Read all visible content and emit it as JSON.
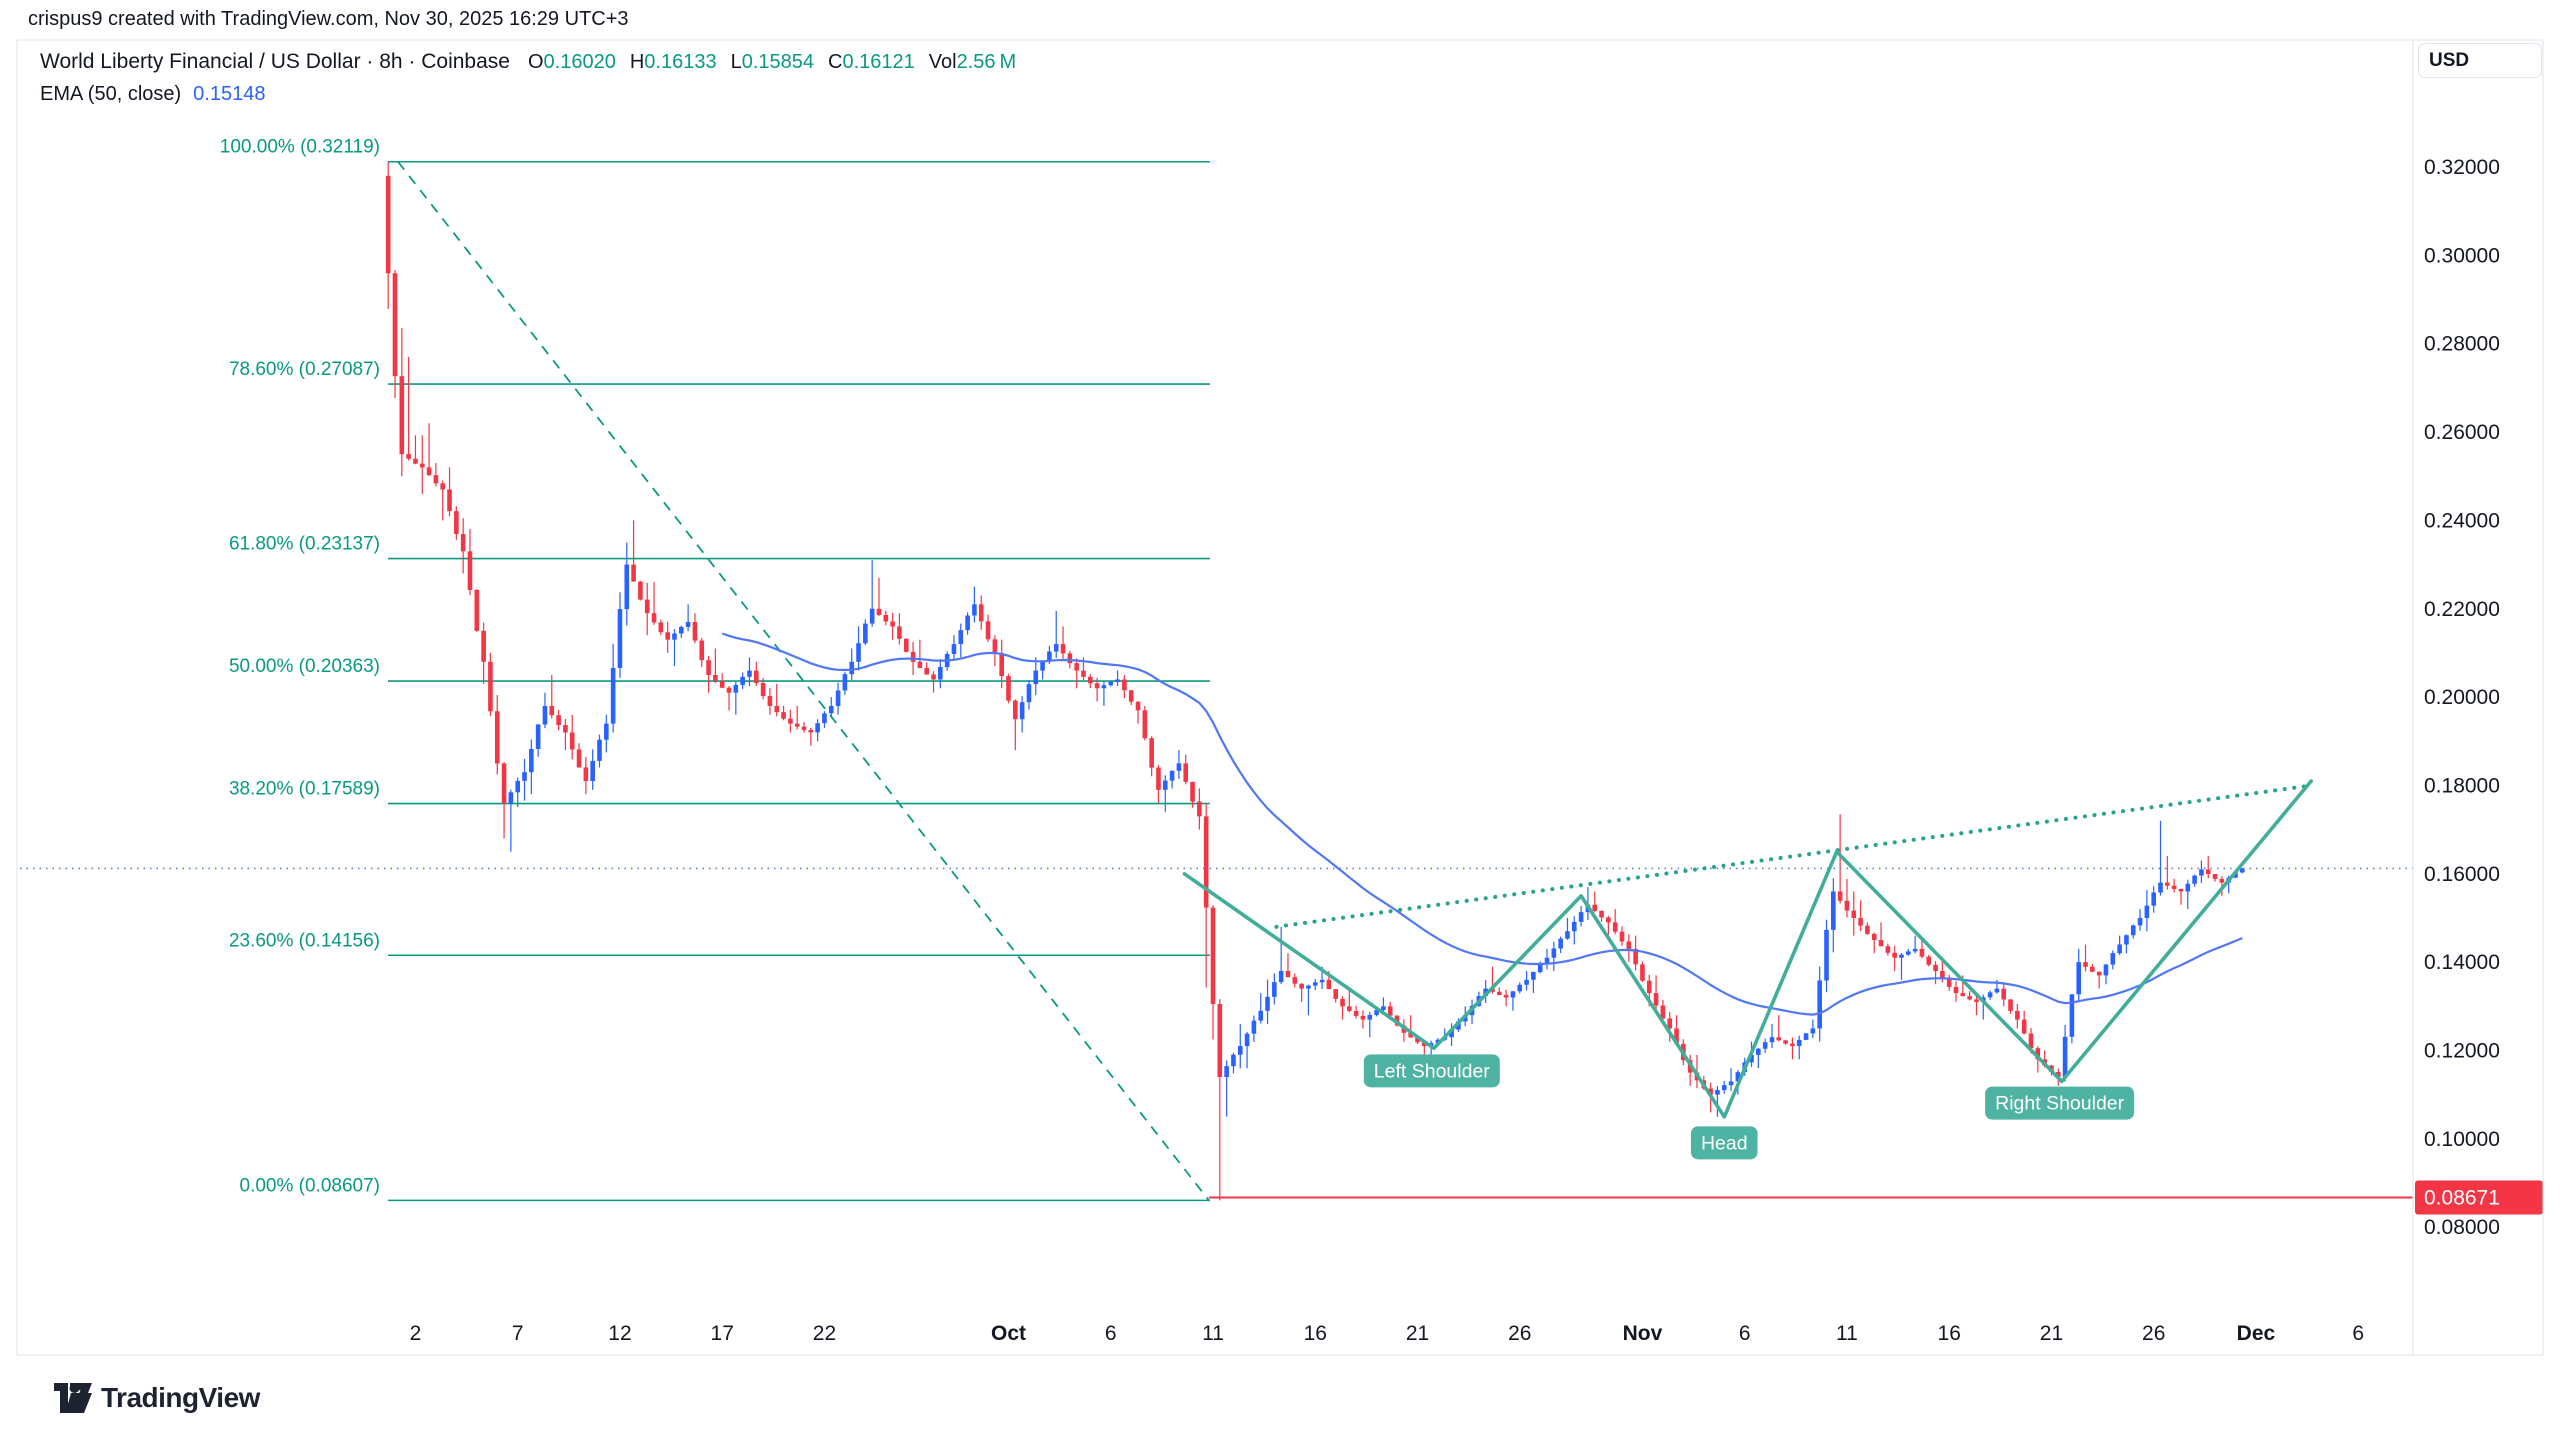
{
  "header": {
    "attribution": "crispus9 created with TradingView.com, Nov 30, 2025 16:29 UTC+3"
  },
  "legend": {
    "symbol_title": "World Liberty Financial / US Dollar · 8h · Coinbase",
    "open_label": "O",
    "open_value": "0.16020",
    "high_label": "H",
    "high_value": "0.16133",
    "low_label": "L",
    "low_value": "0.15854",
    "close_label": "C",
    "close_value": "0.16121",
    "vol_label": "Vol",
    "vol_value": "2.56 M",
    "ema_name": "EMA (50, close)",
    "ema_value": "0.15148"
  },
  "toolbar": {
    "currency": "USD"
  },
  "footer": {
    "brand": "TradingView"
  },
  "colors": {
    "up": "#2962ff",
    "down": "#f23645",
    "fib": "#089981",
    "ema": "#4f77f7",
    "pattern_line": "#42ad99",
    "pattern_chip": "#4eb3a2",
    "neckline": "#2aa38d",
    "price_line": "#5b79e3",
    "alert": "#f23645",
    "axis_text": "#131722",
    "border": "#e0e3eb"
  },
  "chart_data": {
    "type": "candlestick",
    "symbol": "World Liberty Financial / US Dollar",
    "exchange": "Coinbase",
    "interval": "8h",
    "quote_currency": "USD",
    "ylim": [
      0.08,
      0.3212
    ],
    "x_start_date": "Sep 1",
    "x_end_date": "Nov 30",
    "grid": false,
    "daily_ohlc": {
      "columns": [
        "date",
        "open",
        "high",
        "low",
        "close"
      ],
      "rows": [
        [
          "Sep 1",
          0.318,
          0.3212,
          0.25,
          0.255
        ],
        [
          "Sep 2",
          0.255,
          0.277,
          0.246,
          0.252
        ],
        [
          "Sep 3",
          0.252,
          0.262,
          0.24,
          0.247
        ],
        [
          "Sep 4",
          0.247,
          0.252,
          0.228,
          0.233
        ],
        [
          "Sep 5",
          0.233,
          0.238,
          0.203,
          0.208
        ],
        [
          "Sep 6",
          0.208,
          0.21,
          0.168,
          0.176
        ],
        [
          "Sep 7",
          0.176,
          0.186,
          0.165,
          0.183
        ],
        [
          "Sep 8",
          0.183,
          0.201,
          0.178,
          0.198
        ],
        [
          "Sep 9",
          0.198,
          0.205,
          0.188,
          0.192
        ],
        [
          "Sep 10",
          0.192,
          0.196,
          0.178,
          0.181
        ],
        [
          "Sep 11",
          0.181,
          0.196,
          0.179,
          0.194
        ],
        [
          "Sep 12",
          0.194,
          0.235,
          0.192,
          0.23
        ],
        [
          "Sep 13",
          0.23,
          0.24,
          0.214,
          0.219
        ],
        [
          "Sep 14",
          0.219,
          0.226,
          0.21,
          0.213
        ],
        [
          "Sep 15",
          0.213,
          0.221,
          0.207,
          0.217
        ],
        [
          "Sep 16",
          0.217,
          0.219,
          0.201,
          0.205
        ],
        [
          "Sep 17",
          0.205,
          0.211,
          0.197,
          0.201
        ],
        [
          "Sep 18",
          0.201,
          0.209,
          0.196,
          0.206
        ],
        [
          "Sep 19",
          0.206,
          0.208,
          0.196,
          0.198
        ],
        [
          "Sep 20",
          0.198,
          0.203,
          0.192,
          0.194
        ],
        [
          "Sep 21",
          0.194,
          0.198,
          0.189,
          0.192
        ],
        [
          "Sep 22",
          0.192,
          0.2,
          0.19,
          0.198
        ],
        [
          "Sep 23",
          0.198,
          0.211,
          0.196,
          0.208
        ],
        [
          "Sep 24",
          0.208,
          0.231,
          0.206,
          0.22
        ],
        [
          "Sep 25",
          0.22,
          0.227,
          0.213,
          0.216
        ],
        [
          "Sep 26",
          0.216,
          0.219,
          0.205,
          0.208
        ],
        [
          "Sep 27",
          0.208,
          0.213,
          0.201,
          0.204
        ],
        [
          "Sep 28",
          0.204,
          0.214,
          0.202,
          0.212
        ],
        [
          "Sep 29",
          0.212,
          0.225,
          0.209,
          0.221
        ],
        [
          "Sep 30",
          0.221,
          0.223,
          0.207,
          0.21
        ],
        [
          "Oct 1",
          0.21,
          0.213,
          0.188,
          0.195
        ],
        [
          "Oct 2",
          0.195,
          0.209,
          0.192,
          0.206
        ],
        [
          "Oct 3",
          0.206,
          0.2195,
          0.204,
          0.212
        ],
        [
          "Oct 4",
          0.212,
          0.216,
          0.202,
          0.206
        ],
        [
          "Oct 5",
          0.206,
          0.209,
          0.199,
          0.202
        ],
        [
          "Oct 6",
          0.202,
          0.206,
          0.198,
          0.204
        ],
        [
          "Oct 7",
          0.204,
          0.205,
          0.194,
          0.197
        ],
        [
          "Oct 8",
          0.197,
          0.198,
          0.176,
          0.179
        ],
        [
          "Oct 9",
          0.179,
          0.188,
          0.174,
          0.185
        ],
        [
          "Oct 10",
          0.185,
          0.187,
          0.17,
          0.173
        ],
        [
          "Oct 11",
          0.173,
          0.176,
          0.08607,
          0.114
        ],
        [
          "Oct 12",
          0.114,
          0.126,
          0.105,
          0.121
        ],
        [
          "Oct 13",
          0.121,
          0.133,
          0.116,
          0.129
        ],
        [
          "Oct 14",
          0.129,
          0.148,
          0.126,
          0.138
        ],
        [
          "Oct 15",
          0.138,
          0.142,
          0.131,
          0.134
        ],
        [
          "Oct 16",
          0.134,
          0.139,
          0.128,
          0.136
        ],
        [
          "Oct 17",
          0.136,
          0.138,
          0.127,
          0.13
        ],
        [
          "Oct 18",
          0.13,
          0.134,
          0.125,
          0.127
        ],
        [
          "Oct 19",
          0.127,
          0.132,
          0.123,
          0.13
        ],
        [
          "Oct 20",
          0.13,
          0.131,
          0.122,
          0.124
        ],
        [
          "Oct 21",
          0.124,
          0.128,
          0.119,
          0.121
        ],
        [
          "Oct 22",
          0.121,
          0.125,
          0.118,
          0.123
        ],
        [
          "Oct 23",
          0.123,
          0.13,
          0.121,
          0.128
        ],
        [
          "Oct 24",
          0.128,
          0.136,
          0.126,
          0.134
        ],
        [
          "Oct 25",
          0.134,
          0.139,
          0.13,
          0.132
        ],
        [
          "Oct 26",
          0.132,
          0.138,
          0.129,
          0.136
        ],
        [
          "Oct 27",
          0.136,
          0.143,
          0.133,
          0.141
        ],
        [
          "Oct 28",
          0.141,
          0.15,
          0.138,
          0.147
        ],
        [
          "Oct 29",
          0.147,
          0.157,
          0.144,
          0.153
        ],
        [
          "Oct 30",
          0.153,
          0.156,
          0.146,
          0.149
        ],
        [
          "Oct 31",
          0.149,
          0.152,
          0.14,
          0.143
        ],
        [
          "Nov 1",
          0.143,
          0.146,
          0.13,
          0.133
        ],
        [
          "Nov 2",
          0.133,
          0.137,
          0.122,
          0.125
        ],
        [
          "Nov 3",
          0.125,
          0.128,
          0.112,
          0.115
        ],
        [
          "Nov 4",
          0.115,
          0.119,
          0.106,
          0.11
        ],
        [
          "Nov 5",
          0.11,
          0.116,
          0.105,
          0.113
        ],
        [
          "Nov 6",
          0.113,
          0.122,
          0.11,
          0.119
        ],
        [
          "Nov 7",
          0.119,
          0.126,
          0.116,
          0.123
        ],
        [
          "Nov 8",
          0.123,
          0.128,
          0.118,
          0.121
        ],
        [
          "Nov 9",
          0.121,
          0.127,
          0.118,
          0.125
        ],
        [
          "Nov 10",
          0.125,
          0.159,
          0.122,
          0.156
        ],
        [
          "Nov 11",
          0.156,
          0.1735,
          0.146,
          0.15
        ],
        [
          "Nov 12",
          0.15,
          0.154,
          0.142,
          0.145
        ],
        [
          "Nov 13",
          0.145,
          0.149,
          0.138,
          0.141
        ],
        [
          "Nov 14",
          0.141,
          0.146,
          0.136,
          0.143
        ],
        [
          "Nov 15",
          0.143,
          0.145,
          0.135,
          0.138
        ],
        [
          "Nov 16",
          0.138,
          0.141,
          0.131,
          0.133
        ],
        [
          "Nov 17",
          0.133,
          0.137,
          0.128,
          0.131
        ],
        [
          "Nov 18",
          0.131,
          0.136,
          0.127,
          0.134
        ],
        [
          "Nov 19",
          0.134,
          0.135,
          0.125,
          0.127
        ],
        [
          "Nov 20",
          0.127,
          0.129,
          0.115,
          0.118
        ],
        [
          "Nov 21",
          0.118,
          0.12,
          0.112,
          0.114
        ],
        [
          "Nov 22",
          0.114,
          0.143,
          0.113,
          0.14
        ],
        [
          "Nov 23",
          0.14,
          0.144,
          0.134,
          0.137
        ],
        [
          "Nov 24",
          0.137,
          0.146,
          0.135,
          0.144
        ],
        [
          "Nov 25",
          0.144,
          0.152,
          0.142,
          0.15
        ],
        [
          "Nov 26",
          0.15,
          0.172,
          0.147,
          0.158
        ],
        [
          "Nov 27",
          0.158,
          0.164,
          0.153,
          0.156
        ],
        [
          "Nov 28",
          0.156,
          0.163,
          0.152,
          0.161
        ],
        [
          "Nov 29",
          0.161,
          0.164,
          0.155,
          0.158
        ],
        [
          "Nov 30",
          0.158,
          0.16133,
          0.1556,
          0.16121
        ]
      ]
    },
    "ema": {
      "length": 50,
      "source": "close",
      "last_value": 0.15148
    },
    "fib_retracement": {
      "start_day": 0,
      "end_day": 39.85,
      "levels": [
        {
          "pct": "100.00%",
          "price": 0.32119,
          "price_label": "0.32119"
        },
        {
          "pct": "78.60%",
          "price": 0.27087,
          "price_label": "0.27087"
        },
        {
          "pct": "61.80%",
          "price": 0.23137,
          "price_label": "0.23137"
        },
        {
          "pct": "50.00%",
          "price": 0.20363,
          "price_label": "0.20363"
        },
        {
          "pct": "38.20%",
          "price": 0.17589,
          "price_label": "0.17589"
        },
        {
          "pct": "23.60%",
          "price": 0.14156,
          "price_label": "0.14156"
        },
        {
          "pct": "0.00%",
          "price": 0.08607,
          "price_label": "0.08607"
        }
      ],
      "trend_from": {
        "day": 0.15,
        "price": 0.32119
      },
      "trend_to": {
        "day": 39.8,
        "price": 0.08607
      }
    },
    "pattern": {
      "name": "inverse-head-and-shoulders",
      "points": [
        {
          "day": 38.6,
          "price": 0.16
        },
        {
          "day": 50.8,
          "price": 0.1205
        },
        {
          "day": 58.0,
          "price": 0.155
        },
        {
          "day": 65.0,
          "price": 0.105
        },
        {
          "day": 70.5,
          "price": 0.165
        },
        {
          "day": 81.5,
          "price": 0.113
        },
        {
          "day": 93.7,
          "price": 0.181
        }
      ],
      "labels": [
        {
          "text": "Left Shoulder",
          "day": 50.7,
          "price": 0.1154
        },
        {
          "text": "Head",
          "day": 65.0,
          "price": 0.0991
        },
        {
          "text": "Right Shoulder",
          "day": 81.4,
          "price": 0.1081
        }
      ],
      "neckline": {
        "from": {
          "day": 43.1,
          "price": 0.148
        },
        "to": {
          "day": 93.7,
          "price": 0.18
        }
      }
    },
    "current_price_line": {
      "value": 0.16121
    },
    "alert_line": {
      "value": 0.08671,
      "label": "0.08671",
      "start_day": 39.8
    },
    "x_ticks": [
      {
        "label": "2",
        "day": 1,
        "bold": false
      },
      {
        "label": "7",
        "day": 6,
        "bold": false
      },
      {
        "label": "12",
        "day": 11,
        "bold": false
      },
      {
        "label": "17",
        "day": 16,
        "bold": false
      },
      {
        "label": "22",
        "day": 21,
        "bold": false
      },
      {
        "label": "Oct",
        "day": 30,
        "bold": true
      },
      {
        "label": "6",
        "day": 35,
        "bold": false
      },
      {
        "label": "11",
        "day": 40,
        "bold": false
      },
      {
        "label": "16",
        "day": 45,
        "bold": false
      },
      {
        "label": "21",
        "day": 50,
        "bold": false
      },
      {
        "label": "26",
        "day": 55,
        "bold": false
      },
      {
        "label": "Nov",
        "day": 61,
        "bold": true
      },
      {
        "label": "6",
        "day": 66,
        "bold": false
      },
      {
        "label": "11",
        "day": 71,
        "bold": false
      },
      {
        "label": "16",
        "day": 76,
        "bold": false
      },
      {
        "label": "21",
        "day": 81,
        "bold": false
      },
      {
        "label": "26",
        "day": 86,
        "bold": false
      },
      {
        "label": "Dec",
        "day": 91,
        "bold": true
      },
      {
        "label": "6",
        "day": 96,
        "bold": false
      }
    ],
    "y_ticks": [
      {
        "label": "0.32000",
        "price": 0.32
      },
      {
        "label": "0.30000",
        "price": 0.3
      },
      {
        "label": "0.28000",
        "price": 0.28
      },
      {
        "label": "0.26000",
        "price": 0.26
      },
      {
        "label": "0.24000",
        "price": 0.24
      },
      {
        "label": "0.22000",
        "price": 0.22
      },
      {
        "label": "0.20000",
        "price": 0.2
      },
      {
        "label": "0.18000",
        "price": 0.18
      },
      {
        "label": "0.16000",
        "price": 0.16
      },
      {
        "label": "0.14000",
        "price": 0.14
      },
      {
        "label": "0.12000",
        "price": 0.12
      },
      {
        "label": "0.10000",
        "price": 0.1
      },
      {
        "label": "0.08000",
        "price": 0.08
      }
    ]
  }
}
